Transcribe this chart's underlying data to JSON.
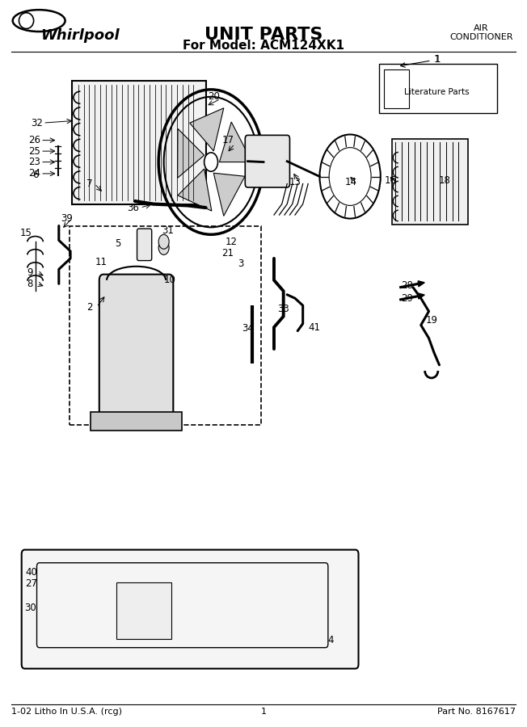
{
  "title": "UNIT PARTS",
  "subtitle": "For Model: ACM124XK1",
  "top_right_line1": "AIR",
  "top_right_line2": "CONDITIONER",
  "brand": "Whirlpool",
  "footer_left": "1-02 Litho In U.S.A. (rcg)",
  "footer_center": "1",
  "footer_right": "Part No. 8167617",
  "literature_label": "Literature Parts",
  "background_color": "#ffffff",
  "border_color": "#000000",
  "fig_width": 6.52,
  "fig_height": 9.0,
  "dpi": 100
}
